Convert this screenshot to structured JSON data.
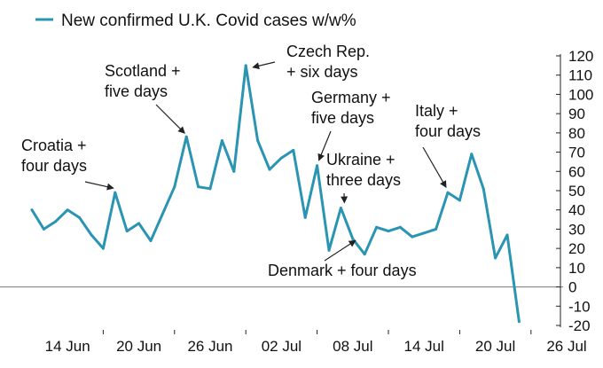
{
  "chart_data": {
    "type": "line",
    "legend": "New confirmed U.K. Covid cases w/w%",
    "legend_position": "top-left",
    "series_color": "#2a94b3",
    "y_axis_side": "right",
    "ylim": [
      -20,
      120
    ],
    "yticks": [
      -20,
      -10,
      0,
      10,
      20,
      30,
      40,
      50,
      60,
      70,
      80,
      90,
      100,
      110,
      120
    ],
    "ytick_labels": [
      "-20",
      "-10",
      "0",
      "10",
      "20",
      "30",
      "40",
      "50",
      "60",
      "70",
      "80",
      "90",
      "100",
      "110",
      "120"
    ],
    "xlim": [
      0,
      46
    ],
    "xticks": [
      6,
      12,
      18,
      24,
      30,
      36,
      42
    ],
    "xtick_labels": [
      "14 Jun",
      "20 Jun",
      "26 Jun",
      "02 Jul",
      "08 Jul",
      "14 Jul",
      "20 Jul",
      "26 Jul"
    ],
    "xtick_positions": [
      3,
      9,
      15,
      21,
      27,
      33,
      39,
      45
    ],
    "zero_line": true,
    "x": [
      0,
      1,
      2,
      3,
      4,
      5,
      6,
      7,
      8,
      9,
      10,
      11,
      12,
      13,
      14,
      15,
      16,
      17,
      18,
      19,
      20,
      21,
      22,
      23,
      24,
      25,
      26,
      27,
      28,
      29,
      30,
      31,
      32,
      33,
      34,
      35,
      36,
      37,
      38,
      39,
      40,
      41
    ],
    "values": [
      40,
      30,
      34,
      40,
      36,
      27,
      20,
      49,
      29,
      33,
      24,
      38,
      52,
      78,
      52,
      51,
      76,
      60,
      115,
      76,
      61,
      67,
      71,
      36,
      63,
      19,
      41,
      25,
      17,
      31,
      29,
      31,
      26,
      28,
      30,
      49,
      45,
      69,
      51,
      15,
      27,
      -18
    ],
    "annotations": [
      {
        "text": [
          "Croatia +",
          "four days"
        ],
        "target_x": 7
      },
      {
        "text": [
          "Scotland +",
          "five days"
        ],
        "target_x": 13
      },
      {
        "text": [
          "Czech Rep.",
          "+ six days"
        ],
        "target_x": 18
      },
      {
        "text": [
          "Germany +",
          "five days"
        ],
        "target_x": 24
      },
      {
        "text": [
          "Ukraine +",
          "three days"
        ],
        "target_x": 26
      },
      {
        "text": [
          "Denmark + four days"
        ],
        "target_x": 31
      },
      {
        "text": [
          "Italy +",
          "four days"
        ],
        "target_x": 35
      }
    ]
  }
}
